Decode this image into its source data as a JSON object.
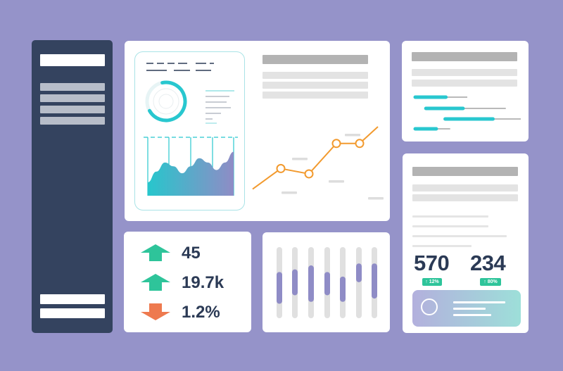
{
  "colors": {
    "background": "#9593c9",
    "sidebar": "#34435f",
    "card": "#ffffff",
    "teal": "#28c7cf",
    "orange": "#f29a2e",
    "purple": "#8f8cc6",
    "up_arrow": "#2ec49a",
    "down_arrow": "#ee7a4f",
    "text_dark": "#2b3a55"
  },
  "stats": [
    {
      "direction": "up",
      "value": "45"
    },
    {
      "direction": "up",
      "value": "19.7k"
    },
    {
      "direction": "down",
      "value": "1.2%"
    }
  ],
  "metrics": [
    {
      "value": "570",
      "badge": "↑ 12%"
    },
    {
      "value": "234",
      "badge": "↑ 80%"
    }
  ],
  "gantt_rows": [
    {
      "start": 0.0,
      "end": 0.3,
      "track_end": 0.5
    },
    {
      "start": 0.1,
      "end": 0.46,
      "track_end": 0.86
    },
    {
      "start": 0.28,
      "end": 0.74,
      "track_end": 1.0
    },
    {
      "start": 0.0,
      "end": 0.21,
      "track_end": 0.34
    }
  ],
  "range_bars": [
    {
      "low": 0.22,
      "high": 0.62
    },
    {
      "low": 0.35,
      "high": 0.66
    },
    {
      "low": 0.25,
      "high": 0.72
    },
    {
      "low": 0.35,
      "high": 0.62
    },
    {
      "low": 0.25,
      "high": 0.55
    },
    {
      "low": 0.55,
      "high": 0.75
    },
    {
      "low": 0.3,
      "high": 0.75
    }
  ],
  "trend_points": [
    0.18,
    0.45,
    0.38,
    0.78,
    0.78,
    1.0
  ],
  "area_series": [
    0.25,
    0.45,
    0.62,
    0.55,
    0.42,
    0.55,
    0.7,
    0.62,
    0.48,
    0.62,
    0.82
  ],
  "donut_level": 0.7
}
